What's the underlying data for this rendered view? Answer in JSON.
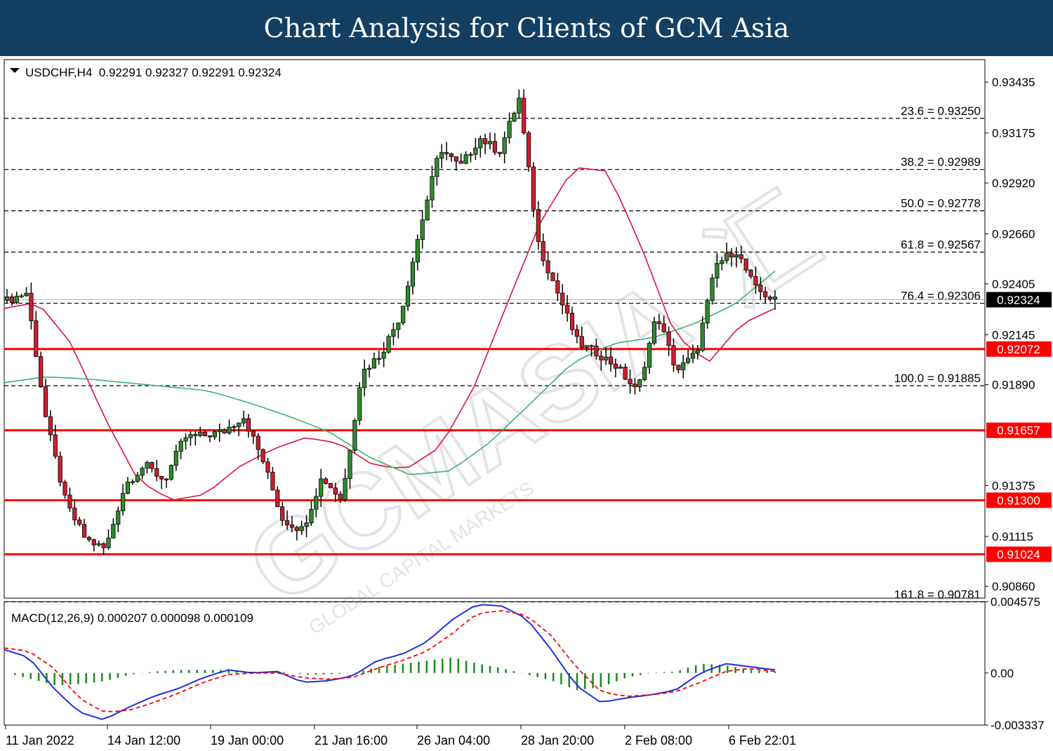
{
  "banner": {
    "title": "Chart Analysis for Clients of GCM Asia"
  },
  "header": {
    "symbol_line": "USDCHF,H4  0.92291 0.92327 0.92291 0.92324",
    "macd_line": "MACD(12,26,9) 0.000207 0.000098 0.000109"
  },
  "watermark": {
    "text": "GCMASIA",
    "cjk": "汇",
    "sub": "GLOBAL CAPITAL MARKETS"
  },
  "colors": {
    "bull": "#2e8b2e",
    "bear": "#cc1f2f",
    "ma_fast": "#dc143c",
    "ma_slow": "#3cb371",
    "support": "#ff0000",
    "macd": "#1e2fdc",
    "signal": "#ff0000",
    "hist": "#1a8a1a",
    "current_price_bg": "#000000",
    "level_label_bg": "#ff0000"
  },
  "chart_data": [
    {
      "type": "candlestick",
      "symbol": "USDCHF",
      "timeframe": "H4",
      "ylim": [
        0.908,
        0.9355
      ],
      "y_ticks": [
        "0.93435",
        "0.93175",
        "0.92920",
        "0.92660",
        "0.92405",
        "0.92145",
        "0.91890",
        "0.91375",
        "0.91115",
        "0.90860"
      ],
      "x_ticks": [
        "11 Jan 2022",
        "14 Jan 12:00",
        "19 Jan 00:00",
        "21 Jan 16:00",
        "26 Jan 04:00",
        "28 Jan 20:00",
        "2 Feb 08:00",
        "6 Feb 22:01"
      ],
      "current_price": "0.92324",
      "fib_levels": [
        {
          "label": "23.6 = 0.93250",
          "value": 0.9325
        },
        {
          "label": "38.2 = 0.92989",
          "value": 0.92989
        },
        {
          "label": "50.0 = 0.92778",
          "value": 0.92778
        },
        {
          "label": "61.8 = 0.92567",
          "value": 0.92567
        },
        {
          "label": "76.4 = 0.92306",
          "value": 0.92306
        },
        {
          "label": "100.0 = 0.91885",
          "value": 0.91885
        },
        {
          "label": "161.8 = 0.90781",
          "value": 0.90781
        }
      ],
      "support_levels": [
        {
          "label": "0.92072",
          "value": 0.92072
        },
        {
          "label": "0.91657",
          "value": 0.91657
        },
        {
          "label": "0.91300",
          "value": 0.913
        },
        {
          "label": "0.91024",
          "value": 0.91024
        }
      ],
      "close_path": [
        0.9232,
        0.9236,
        0.917,
        0.9128,
        0.911,
        0.9105,
        0.9138,
        0.9148,
        0.914,
        0.9162,
        0.9163,
        0.9165,
        0.9173,
        0.915,
        0.912,
        0.9115,
        0.9142,
        0.913,
        0.9195,
        0.9205,
        0.9225,
        0.927,
        0.931,
        0.93,
        0.9315,
        0.9308,
        0.9335,
        0.926,
        0.9235,
        0.921,
        0.9205,
        0.9198,
        0.9185,
        0.9225,
        0.9196,
        0.9205,
        0.925,
        0.9258,
        0.9238,
        0.9232
      ],
      "ma_fast": [
        0.9228,
        0.9231,
        0.921,
        0.9172,
        0.914,
        0.913,
        0.9133,
        0.9147,
        0.9156,
        0.9162,
        0.9159,
        0.9148,
        0.9146,
        0.9157,
        0.9187,
        0.923,
        0.9272,
        0.93,
        0.9298,
        0.926,
        0.9215,
        0.92,
        0.922,
        0.9228
      ],
      "ma_slow": [
        0.919,
        0.9193,
        0.9192,
        0.919,
        0.9188,
        0.9186,
        0.918,
        0.9173,
        0.9165,
        0.9152,
        0.9143,
        0.9145,
        0.916,
        0.918,
        0.92,
        0.921,
        0.9213,
        0.922,
        0.923,
        0.9247
      ]
    },
    {
      "type": "macd",
      "params": "12,26,9",
      "values": [
        0.000207,
        9.8e-05,
        0.000109
      ],
      "ylim": [
        -0.003337,
        0.004575
      ],
      "y_ticks": [
        "0.004575",
        "0.00",
        "-0.003337"
      ],
      "macd": [
        0.0015,
        0.001,
        -0.001,
        -0.0025,
        -0.003,
        -0.0022,
        -0.0015,
        -0.001,
        -0.0003,
        0.0002,
        0.0,
        0.0001,
        -0.0006,
        -0.0005,
        -0.0002,
        0.0008,
        0.0012,
        0.002,
        0.0034,
        0.0044,
        0.0043,
        0.0035,
        0.0015,
        -0.0008,
        -0.0019,
        -0.0016,
        -0.0014,
        -0.0011,
        0.0,
        0.0006,
        0.0004,
        0.0002
      ],
      "signal": [
        0.0016,
        0.0014,
        0.0003,
        -0.0016,
        -0.0025,
        -0.0024,
        -0.0019,
        -0.0013,
        -0.0006,
        -0.0001,
        0.0,
        0.0,
        -0.0003,
        -0.0004,
        -0.0003,
        0.0003,
        0.0008,
        0.0014,
        0.0025,
        0.0038,
        0.004,
        0.0037,
        0.0024,
        0.0004,
        -0.0012,
        -0.0015,
        -0.0014,
        -0.0012,
        -0.0006,
        0.0001,
        0.0003,
        0.0001
      ],
      "histogram": [
        0.0,
        -0.0004,
        -0.0008,
        -0.0007,
        -0.0005,
        -0.0001,
        0.0001,
        0.0002,
        0.0002,
        0.0002,
        0.0,
        0.0001,
        -0.0001,
        -0.0001,
        0.0,
        0.0004,
        0.0006,
        0.0008,
        0.001,
        0.0006,
        0.0003,
        -0.0001,
        -0.0005,
        -0.0011,
        -0.0009,
        -0.0003,
        0.0,
        0.0001,
        0.0006,
        0.0005,
        0.0002,
        0.0001
      ]
    }
  ]
}
